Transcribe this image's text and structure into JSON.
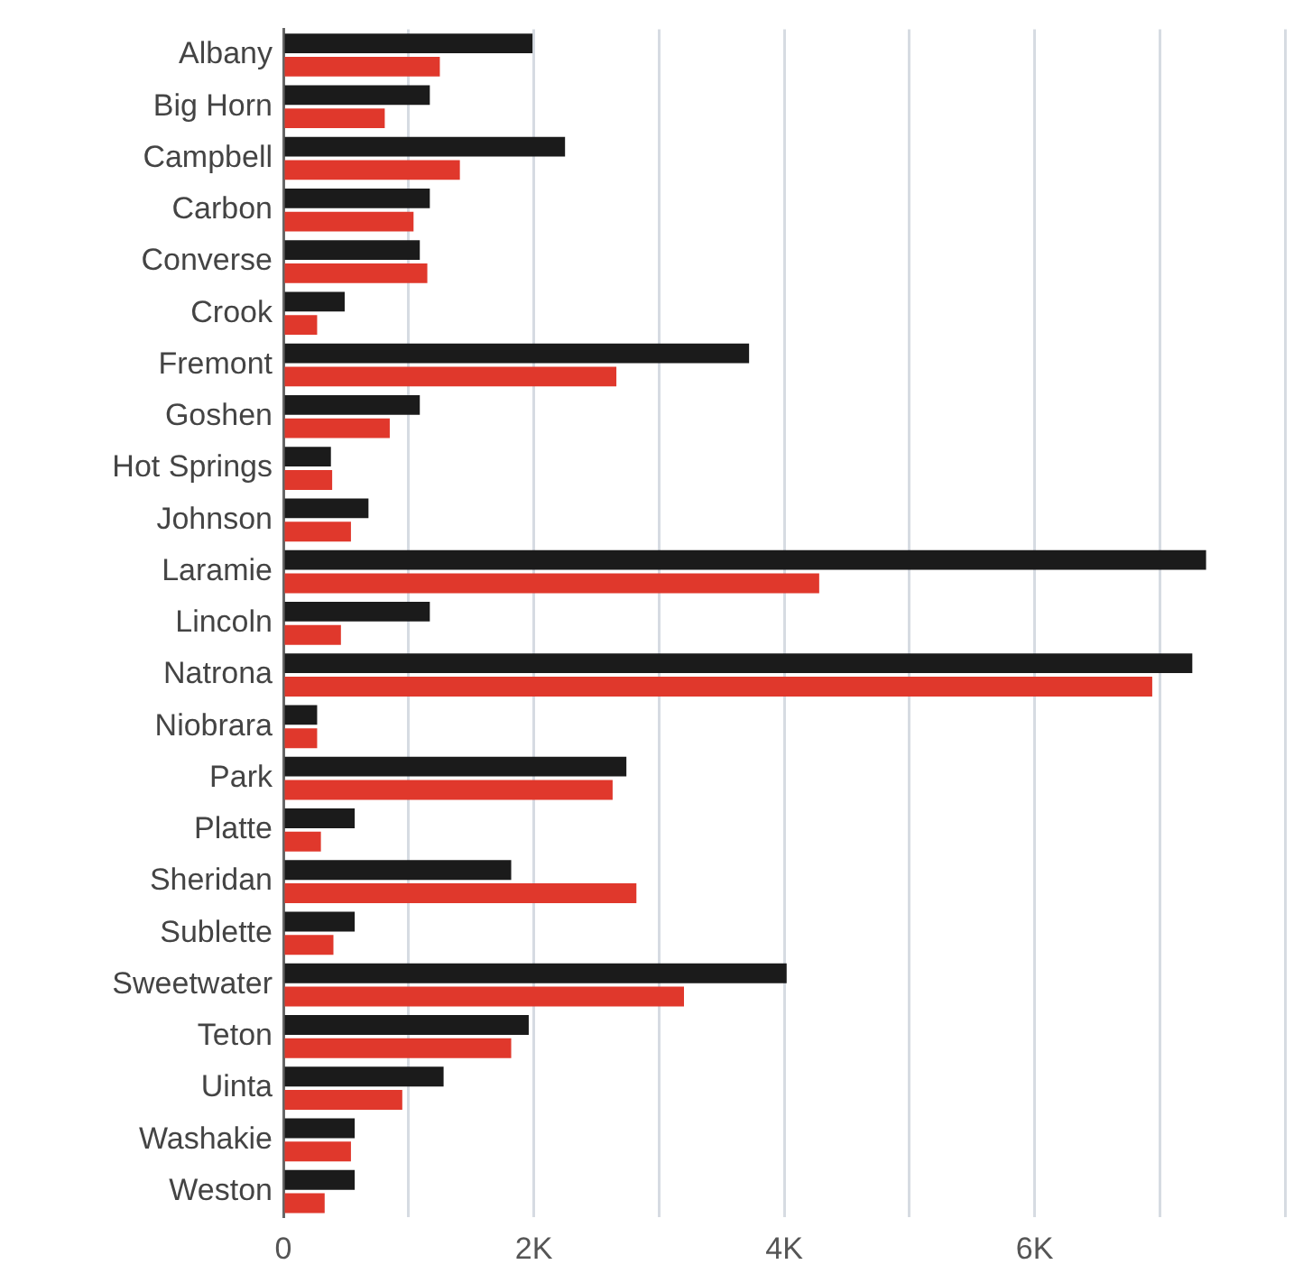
{
  "chart_data": {
    "type": "bar",
    "orientation": "horizontal",
    "categories": [
      "Albany",
      "Big Horn",
      "Campbell",
      "Carbon",
      "Converse",
      "Crook",
      "Fremont",
      "Goshen",
      "Hot Springs",
      "Johnson",
      "Laramie",
      "Lincoln",
      "Natrona",
      "Niobrara",
      "Park",
      "Platte",
      "Sheridan",
      "Sublette",
      "Sweetwater",
      "Teton",
      "Uinta",
      "Washakie",
      "Weston"
    ],
    "series": [
      {
        "color": "#1b1b1b",
        "values": [
          1990,
          1170,
          2250,
          1170,
          1090,
          490,
          3720,
          1090,
          380,
          680,
          7370,
          1170,
          7260,
          270,
          2740,
          570,
          1820,
          570,
          4020,
          1960,
          1280,
          570,
          570
        ]
      },
      {
        "color": "#e0382c",
        "values": [
          1250,
          810,
          1410,
          1040,
          1150,
          270,
          2660,
          850,
          390,
          540,
          4280,
          460,
          6940,
          270,
          2630,
          300,
          2820,
          400,
          3200,
          1820,
          950,
          540,
          330
        ]
      }
    ],
    "xlim": [
      0,
      8000
    ],
    "xticks": [
      0,
      {
        "value": 1000,
        "label": null
      },
      {
        "value": 2000,
        "label": "2K"
      },
      {
        "value": 3000,
        "label": null
      },
      {
        "value": 4000,
        "label": "4K"
      },
      {
        "value": 5000,
        "label": null
      },
      {
        "value": 6000,
        "label": "6K"
      },
      {
        "value": 7000,
        "label": null
      },
      {
        "value": 8000,
        "label": null
      }
    ],
    "grid": "x",
    "legend": false
  }
}
